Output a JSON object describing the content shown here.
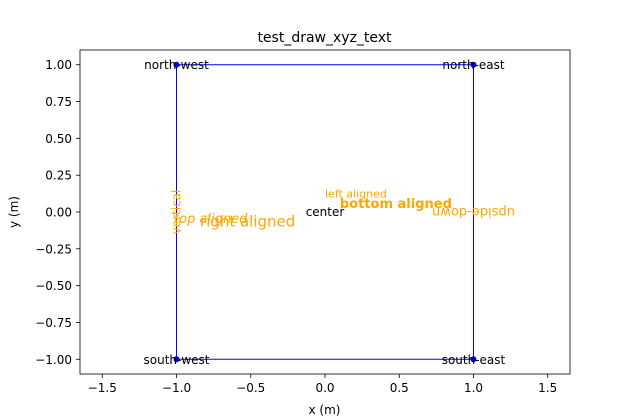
{
  "chart_data": {
    "type": "line",
    "title": "test_draw_xyz_text",
    "xlabel": "x (m)",
    "ylabel": "y (m)",
    "xlim": [
      -1.65,
      1.65
    ],
    "ylim": [
      -1.1,
      1.1
    ],
    "xticks": [
      -1.5,
      -1.0,
      -0.5,
      0.0,
      0.5,
      1.0,
      1.5
    ],
    "xtick_labels": [
      "−1.5",
      "−1.0",
      "−0.5",
      "0.0",
      "0.5",
      "1.0",
      "1.5"
    ],
    "yticks": [
      1.0,
      0.75,
      0.5,
      0.25,
      0.0,
      -0.25,
      -0.5,
      -0.75,
      -1.0
    ],
    "ytick_labels": [
      "1.00",
      "0.75",
      "0.50",
      "0.25",
      "0.00",
      "−0.25",
      "−0.50",
      "−0.75",
      "−1.00"
    ],
    "grid": false,
    "line_color": "#0000ff",
    "annotation_color": "#ffa500",
    "series": [
      {
        "x": [
          -1,
          1,
          1,
          -1,
          -1
        ],
        "y": [
          1,
          1,
          -1,
          -1,
          1
        ]
      }
    ],
    "points": [
      {
        "x": -1,
        "y": 1,
        "label": "north-west"
      },
      {
        "x": 1,
        "y": 1,
        "label": "north-east"
      },
      {
        "x": -1,
        "y": -1,
        "label": "south-west"
      },
      {
        "x": 1,
        "y": -1,
        "label": "south-east"
      }
    ],
    "annotations": [
      {
        "text": "center",
        "x": 0,
        "y": 0,
        "color": "#000000"
      },
      {
        "text": "left aligned",
        "x": 0,
        "y": 0.1,
        "color": "#ffa500"
      },
      {
        "text": "bottom aligned",
        "x": 0.1,
        "y": 0,
        "color": "#ffa500",
        "weight": "bold"
      },
      {
        "text": "top aligned",
        "x": -0.5,
        "y": 0,
        "color": "#ffa500",
        "style": "italic"
      },
      {
        "text": "right aligned",
        "x": -0.2,
        "y": -0.1,
        "color": "#ffa500"
      },
      {
        "text": "vertical",
        "x": -1,
        "y": 0,
        "color": "#ffa500",
        "rotation": 90
      },
      {
        "text": "upside-down",
        "x": 1,
        "y": 0,
        "color": "#ffa500",
        "rotation": 180
      }
    ]
  }
}
